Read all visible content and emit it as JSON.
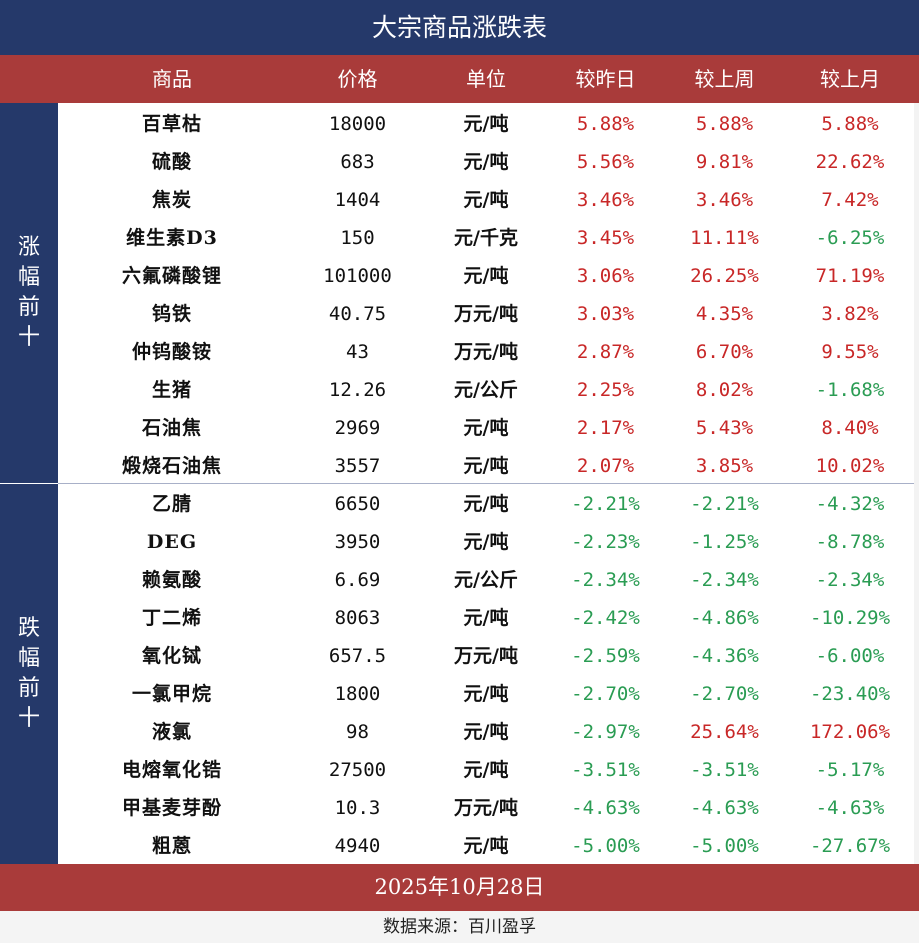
{
  "title": "大宗商品涨跌表",
  "headers": [
    "商品",
    "价格",
    "单位",
    "较昨日",
    "较上周",
    "较上月"
  ],
  "groups": {
    "gain_label": "涨幅前十",
    "loss_label": "跌幅前十"
  },
  "colors": {
    "title_bg": "#25396a",
    "header_bg": "#a93b3a",
    "up": "#c82727",
    "down": "#2a9c53"
  },
  "gainers": [
    {
      "name": "百草枯",
      "price": "18000",
      "unit": "元/吨",
      "day": "5.88%",
      "week": "5.88%",
      "month": "5.88%"
    },
    {
      "name": "硫酸",
      "price": "683",
      "unit": "元/吨",
      "day": "5.56%",
      "week": "9.81%",
      "month": "22.62%"
    },
    {
      "name": "焦炭",
      "price": "1404",
      "unit": "元/吨",
      "day": "3.46%",
      "week": "3.46%",
      "month": "7.42%"
    },
    {
      "name": "维生素D3",
      "price": "150",
      "unit": "元/千克",
      "day": "3.45%",
      "week": "11.11%",
      "month": "-6.25%"
    },
    {
      "name": "六氟磷酸锂",
      "price": "101000",
      "unit": "元/吨",
      "day": "3.06%",
      "week": "26.25%",
      "month": "71.19%"
    },
    {
      "name": "钨铁",
      "price": "40.75",
      "unit": "万元/吨",
      "day": "3.03%",
      "week": "4.35%",
      "month": "3.82%"
    },
    {
      "name": "仲钨酸铵",
      "price": "43",
      "unit": "万元/吨",
      "day": "2.87%",
      "week": "6.70%",
      "month": "9.55%"
    },
    {
      "name": "生猪",
      "price": "12.26",
      "unit": "元/公斤",
      "day": "2.25%",
      "week": "8.02%",
      "month": "-1.68%"
    },
    {
      "name": "石油焦",
      "price": "2969",
      "unit": "元/吨",
      "day": "2.17%",
      "week": "5.43%",
      "month": "8.40%"
    },
    {
      "name": "煅烧石油焦",
      "price": "3557",
      "unit": "元/吨",
      "day": "2.07%",
      "week": "3.85%",
      "month": "10.02%"
    }
  ],
  "losers": [
    {
      "name": "乙腈",
      "price": "6650",
      "unit": "元/吨",
      "day": "-2.21%",
      "week": "-2.21%",
      "month": "-4.32%"
    },
    {
      "name": "DEG",
      "price": "3950",
      "unit": "元/吨",
      "day": "-2.23%",
      "week": "-1.25%",
      "month": "-8.78%"
    },
    {
      "name": "赖氨酸",
      "price": "6.69",
      "unit": "元/公斤",
      "day": "-2.34%",
      "week": "-2.34%",
      "month": "-2.34%"
    },
    {
      "name": "丁二烯",
      "price": "8063",
      "unit": "元/吨",
      "day": "-2.42%",
      "week": "-4.86%",
      "month": "-10.29%"
    },
    {
      "name": "氧化铽",
      "price": "657.5",
      "unit": "万元/吨",
      "day": "-2.59%",
      "week": "-4.36%",
      "month": "-6.00%"
    },
    {
      "name": "一氯甲烷",
      "price": "1800",
      "unit": "元/吨",
      "day": "-2.70%",
      "week": "-2.70%",
      "month": "-23.40%"
    },
    {
      "name": "液氯",
      "price": "98",
      "unit": "元/吨",
      "day": "-2.97%",
      "week": "25.64%",
      "month": "172.06%"
    },
    {
      "name": "电熔氧化锆",
      "price": "27500",
      "unit": "元/吨",
      "day": "-3.51%",
      "week": "-3.51%",
      "month": "-5.17%"
    },
    {
      "name": "甲基麦芽酚",
      "price": "10.3",
      "unit": "万元/吨",
      "day": "-4.63%",
      "week": "-4.63%",
      "month": "-4.63%"
    },
    {
      "name": "粗蒽",
      "price": "4940",
      "unit": "元/吨",
      "day": "-5.00%",
      "week": "-5.00%",
      "month": "-27.67%"
    }
  ],
  "date": "2025年10月28日",
  "source": "数据来源：百川盈孚"
}
